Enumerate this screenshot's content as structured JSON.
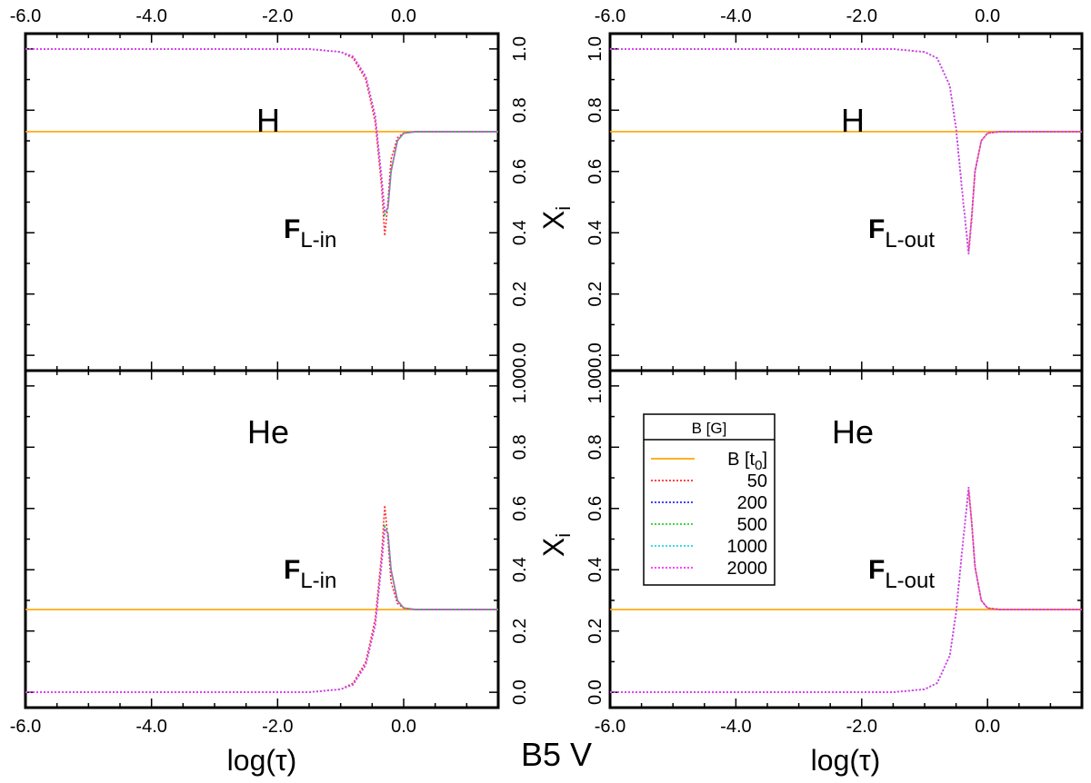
{
  "figure_title": "B5 V",
  "chart_data": {
    "type": "line",
    "x_range": [
      -6.0,
      1.5
    ],
    "x_ticks": [
      -6.0,
      -4.0,
      -2.0,
      0.0
    ],
    "x_tick_labels": [
      "-6.0",
      "-4.0",
      "-2.0",
      "0.0"
    ],
    "xlabel": "log(τ)",
    "y_range": [
      -0.05,
      1.05
    ],
    "y_ticks": [
      0.0,
      0.2,
      0.4,
      0.6,
      0.8,
      1.0
    ],
    "y_tick_labels_top": [
      "0.0",
      "0.2",
      "0.4",
      "0.6",
      "0.8",
      "1.0"
    ],
    "y_tick_labels_bottom": [
      "0.0",
      "0.2",
      "0.4",
      "0.6",
      "0.8",
      "1.00"
    ],
    "ylabel_main": "X",
    "ylabel_sub": "i",
    "series_styles": [
      {
        "name": "B [t0]",
        "color": "#ffa500",
        "dash": "solid"
      },
      {
        "name": "50",
        "color": "#ff2a2a",
        "dash": "dotted"
      },
      {
        "name": "200",
        "color": "#2a2aff",
        "dash": "dotted"
      },
      {
        "name": "500",
        "color": "#2ad02a",
        "dash": "dotted"
      },
      {
        "name": "1000",
        "color": "#20d8d8",
        "dash": "dotted"
      },
      {
        "name": "2000",
        "color": "#ff2aff",
        "dash": "dotted"
      }
    ],
    "legend": {
      "title": "B [G]",
      "entries": [
        {
          "main": "B [t",
          "sub": "0",
          "close": "]"
        },
        {
          "main": "50"
        },
        {
          "main": "200"
        },
        {
          "main": "500"
        },
        {
          "main": "1000"
        },
        {
          "main": "2000"
        }
      ]
    },
    "panels": [
      {
        "id": "top-left",
        "element": "H",
        "flux_main": "F",
        "flux_sub": "L-in",
        "baseline": 0.73,
        "series": [
          {
            "name": "50",
            "x": [
              -6.0,
              -1.5,
              -1.0,
              -0.8,
              -0.6,
              -0.45,
              -0.35,
              -0.3,
              -0.25,
              -0.2,
              -0.1,
              0.0,
              0.2,
              1.5
            ],
            "y": [
              1.0,
              1.0,
              0.99,
              0.97,
              0.9,
              0.76,
              0.55,
              0.39,
              0.5,
              0.64,
              0.71,
              0.725,
              0.73,
              0.73
            ]
          },
          {
            "name": "200",
            "x": [
              -6.0,
              -1.5,
              -1.0,
              -0.8,
              -0.6,
              -0.45,
              -0.35,
              -0.3,
              -0.25,
              -0.2,
              -0.1,
              0.0,
              0.2,
              1.5
            ],
            "y": [
              1.0,
              1.0,
              0.99,
              0.975,
              0.91,
              0.78,
              0.58,
              0.46,
              0.48,
              0.6,
              0.7,
              0.725,
              0.73,
              0.73
            ]
          },
          {
            "name": "500",
            "x": [
              -6.0,
              -1.5,
              -1.0,
              -0.8,
              -0.6,
              -0.45,
              -0.35,
              -0.3,
              -0.25,
              -0.2,
              -0.1,
              0.0,
              0.2,
              1.5
            ],
            "y": [
              1.0,
              1.0,
              0.99,
              0.975,
              0.91,
              0.78,
              0.58,
              0.46,
              0.48,
              0.6,
              0.7,
              0.725,
              0.73,
              0.73
            ]
          },
          {
            "name": "1000",
            "x": [
              -6.0,
              -1.5,
              -1.0,
              -0.8,
              -0.6,
              -0.45,
              -0.35,
              -0.3,
              -0.25,
              -0.2,
              -0.1,
              0.0,
              0.2,
              1.5
            ],
            "y": [
              1.0,
              1.0,
              0.99,
              0.975,
              0.91,
              0.78,
              0.58,
              0.47,
              0.48,
              0.6,
              0.7,
              0.725,
              0.73,
              0.73
            ]
          },
          {
            "name": "2000",
            "x": [
              -6.0,
              -1.5,
              -1.0,
              -0.8,
              -0.6,
              -0.45,
              -0.35,
              -0.3,
              -0.25,
              -0.2,
              -0.1,
              0.0,
              0.2,
              1.5
            ],
            "y": [
              1.0,
              1.0,
              0.99,
              0.975,
              0.91,
              0.78,
              0.58,
              0.47,
              0.48,
              0.6,
              0.7,
              0.725,
              0.73,
              0.73
            ]
          }
        ]
      },
      {
        "id": "top-right",
        "element": "H",
        "flux_main": "F",
        "flux_sub": "L-out",
        "baseline": 0.73,
        "series": [
          {
            "name": "50",
            "x": [
              -6.0,
              -1.5,
              -1.0,
              -0.8,
              -0.6,
              -0.5,
              -0.4,
              -0.3,
              -0.25,
              -0.2,
              -0.1,
              0.0,
              0.2,
              1.5
            ],
            "y": [
              1.0,
              1.0,
              0.99,
              0.97,
              0.88,
              0.74,
              0.53,
              0.34,
              0.46,
              0.6,
              0.7,
              0.725,
              0.73,
              0.73
            ]
          },
          {
            "name": "200",
            "x": [
              -6.0,
              -1.5,
              -1.0,
              -0.8,
              -0.6,
              -0.5,
              -0.4,
              -0.3,
              -0.25,
              -0.2,
              -0.1,
              0.0,
              0.2,
              1.5
            ],
            "y": [
              1.0,
              1.0,
              0.99,
              0.97,
              0.88,
              0.74,
              0.53,
              0.33,
              0.45,
              0.6,
              0.7,
              0.725,
              0.73,
              0.73
            ]
          },
          {
            "name": "500",
            "x": [
              -6.0,
              -1.5,
              -1.0,
              -0.8,
              -0.6,
              -0.5,
              -0.4,
              -0.3,
              -0.25,
              -0.2,
              -0.1,
              0.0,
              0.2,
              1.5
            ],
            "y": [
              1.0,
              1.0,
              0.99,
              0.97,
              0.88,
              0.74,
              0.53,
              0.33,
              0.45,
              0.6,
              0.7,
              0.725,
              0.73,
              0.73
            ]
          },
          {
            "name": "1000",
            "x": [
              -6.0,
              -1.5,
              -1.0,
              -0.8,
              -0.6,
              -0.5,
              -0.4,
              -0.3,
              -0.25,
              -0.2,
              -0.1,
              0.0,
              0.2,
              1.5
            ],
            "y": [
              1.0,
              1.0,
              0.99,
              0.97,
              0.88,
              0.74,
              0.53,
              0.33,
              0.45,
              0.6,
              0.7,
              0.725,
              0.73,
              0.73
            ]
          },
          {
            "name": "2000",
            "x": [
              -6.0,
              -1.5,
              -1.0,
              -0.8,
              -0.6,
              -0.5,
              -0.4,
              -0.3,
              -0.25,
              -0.2,
              -0.1,
              0.0,
              0.2,
              1.5
            ],
            "y": [
              1.0,
              1.0,
              0.99,
              0.97,
              0.88,
              0.74,
              0.53,
              0.33,
              0.45,
              0.6,
              0.7,
              0.725,
              0.73,
              0.73
            ]
          }
        ]
      },
      {
        "id": "bottom-left",
        "element": "He",
        "flux_main": "F",
        "flux_sub": "L-in",
        "baseline": 0.27,
        "series": [
          {
            "name": "50",
            "x": [
              -6.0,
              -1.5,
              -1.0,
              -0.8,
              -0.6,
              -0.45,
              -0.35,
              -0.3,
              -0.25,
              -0.2,
              -0.1,
              0.0,
              0.2,
              1.5
            ],
            "y": [
              0.0,
              0.0,
              0.01,
              0.03,
              0.1,
              0.24,
              0.45,
              0.61,
              0.5,
              0.36,
              0.29,
              0.275,
              0.27,
              0.27
            ]
          },
          {
            "name": "200",
            "x": [
              -6.0,
              -1.5,
              -1.0,
              -0.8,
              -0.6,
              -0.45,
              -0.35,
              -0.3,
              -0.25,
              -0.2,
              -0.1,
              0.0,
              0.2,
              1.5
            ],
            "y": [
              0.0,
              0.0,
              0.01,
              0.025,
              0.09,
              0.22,
              0.42,
              0.54,
              0.52,
              0.4,
              0.3,
              0.275,
              0.27,
              0.27
            ]
          },
          {
            "name": "500",
            "x": [
              -6.0,
              -1.5,
              -1.0,
              -0.8,
              -0.6,
              -0.45,
              -0.35,
              -0.3,
              -0.25,
              -0.2,
              -0.1,
              0.0,
              0.2,
              1.5
            ],
            "y": [
              0.0,
              0.0,
              0.01,
              0.025,
              0.09,
              0.22,
              0.42,
              0.54,
              0.52,
              0.4,
              0.3,
              0.275,
              0.27,
              0.27
            ]
          },
          {
            "name": "1000",
            "x": [
              -6.0,
              -1.5,
              -1.0,
              -0.8,
              -0.6,
              -0.45,
              -0.35,
              -0.3,
              -0.25,
              -0.2,
              -0.1,
              0.0,
              0.2,
              1.5
            ],
            "y": [
              0.0,
              0.0,
              0.01,
              0.025,
              0.09,
              0.22,
              0.42,
              0.53,
              0.52,
              0.4,
              0.3,
              0.275,
              0.27,
              0.27
            ]
          },
          {
            "name": "2000",
            "x": [
              -6.0,
              -1.5,
              -1.0,
              -0.8,
              -0.6,
              -0.45,
              -0.35,
              -0.3,
              -0.25,
              -0.2,
              -0.1,
              0.0,
              0.2,
              1.5
            ],
            "y": [
              0.0,
              0.0,
              0.01,
              0.025,
              0.09,
              0.22,
              0.42,
              0.53,
              0.52,
              0.4,
              0.3,
              0.275,
              0.27,
              0.27
            ]
          }
        ]
      },
      {
        "id": "bottom-right",
        "element": "He",
        "flux_main": "F",
        "flux_sub": "L-out",
        "baseline": 0.27,
        "series": [
          {
            "name": "50",
            "x": [
              -6.0,
              -1.5,
              -1.0,
              -0.8,
              -0.6,
              -0.5,
              -0.4,
              -0.3,
              -0.25,
              -0.2,
              -0.1,
              0.0,
              0.2,
              1.5
            ],
            "y": [
              0.0,
              0.0,
              0.01,
              0.03,
              0.12,
              0.26,
              0.47,
              0.66,
              0.55,
              0.41,
              0.3,
              0.275,
              0.27,
              0.27
            ]
          },
          {
            "name": "200",
            "x": [
              -6.0,
              -1.5,
              -1.0,
              -0.8,
              -0.6,
              -0.5,
              -0.4,
              -0.3,
              -0.25,
              -0.2,
              -0.1,
              0.0,
              0.2,
              1.5
            ],
            "y": [
              0.0,
              0.0,
              0.01,
              0.03,
              0.12,
              0.26,
              0.47,
              0.67,
              0.55,
              0.41,
              0.3,
              0.275,
              0.27,
              0.27
            ]
          },
          {
            "name": "500",
            "x": [
              -6.0,
              -1.5,
              -1.0,
              -0.8,
              -0.6,
              -0.5,
              -0.4,
              -0.3,
              -0.25,
              -0.2,
              -0.1,
              0.0,
              0.2,
              1.5
            ],
            "y": [
              0.0,
              0.0,
              0.01,
              0.03,
              0.12,
              0.26,
              0.47,
              0.67,
              0.55,
              0.41,
              0.3,
              0.275,
              0.27,
              0.27
            ]
          },
          {
            "name": "1000",
            "x": [
              -6.0,
              -1.5,
              -1.0,
              -0.8,
              -0.6,
              -0.5,
              -0.4,
              -0.3,
              -0.25,
              -0.2,
              -0.1,
              0.0,
              0.2,
              1.5
            ],
            "y": [
              0.0,
              0.0,
              0.01,
              0.03,
              0.12,
              0.26,
              0.47,
              0.67,
              0.55,
              0.41,
              0.3,
              0.275,
              0.27,
              0.27
            ]
          },
          {
            "name": "2000",
            "x": [
              -6.0,
              -1.5,
              -1.0,
              -0.8,
              -0.6,
              -0.5,
              -0.4,
              -0.3,
              -0.25,
              -0.2,
              -0.1,
              0.0,
              0.2,
              1.5
            ],
            "y": [
              0.0,
              0.0,
              0.01,
              0.03,
              0.12,
              0.26,
              0.47,
              0.67,
              0.55,
              0.41,
              0.3,
              0.275,
              0.27,
              0.27
            ]
          }
        ]
      }
    ]
  }
}
